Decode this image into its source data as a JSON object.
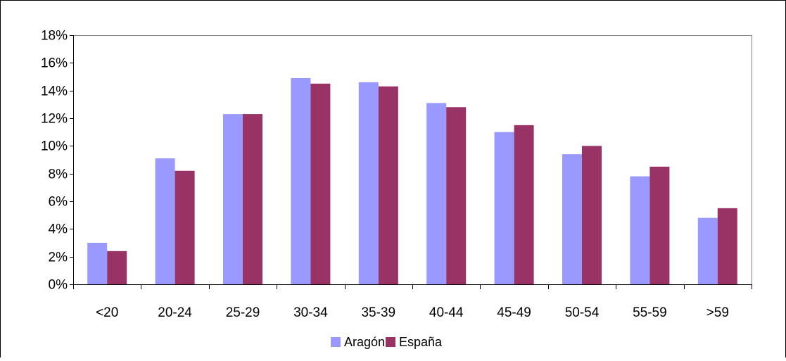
{
  "chart_data": {
    "type": "bar",
    "title": "",
    "xlabel": "",
    "ylabel": "",
    "categories": [
      "<20",
      "20-24",
      "25-29",
      "30-34",
      "35-39",
      "40-44",
      "45-49",
      "50-54",
      "55-59",
      ">59"
    ],
    "series": [
      {
        "name": "Aragón",
        "color": "#9999ff",
        "values": [
          3.0,
          9.1,
          12.3,
          14.9,
          14.6,
          13.1,
          11.0,
          9.4,
          7.8,
          4.8
        ]
      },
      {
        "name": "España",
        "color": "#993366",
        "values": [
          2.4,
          8.2,
          12.3,
          14.5,
          14.3,
          12.8,
          11.5,
          10.0,
          8.5,
          5.5
        ]
      }
    ],
    "ylim": [
      0,
      18
    ],
    "y_ticks": [
      "0%",
      "2%",
      "4%",
      "6%",
      "8%",
      "10%",
      "12%",
      "14%",
      "16%",
      "18%"
    ],
    "grid": false,
    "legend_position": "bottom"
  }
}
